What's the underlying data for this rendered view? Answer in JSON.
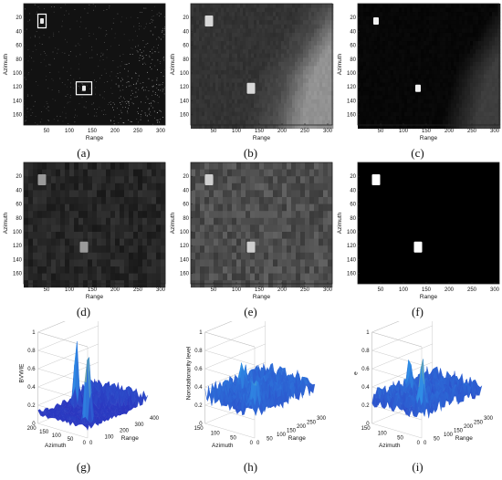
{
  "panels": [
    {
      "id": "a",
      "caption": "(a)",
      "kind": "sar",
      "xlabel": "Range",
      "ylabel": "Azimuth",
      "xticks": [
        "50",
        "100",
        "150",
        "200",
        "250",
        "300"
      ],
      "yticks": [
        "20",
        "40",
        "60",
        "80",
        "100",
        "120",
        "140",
        "160"
      ]
    },
    {
      "id": "b",
      "caption": "(b)",
      "kind": "blur",
      "xlabel": "Range",
      "ylabel": "Azimuth",
      "xticks": [
        "50",
        "100",
        "150",
        "200",
        "250",
        "300"
      ],
      "yticks": [
        "20",
        "40",
        "60",
        "80",
        "100",
        "120",
        "140",
        "160"
      ]
    },
    {
      "id": "c",
      "caption": "(c)",
      "kind": "dark",
      "xlabel": "Range",
      "ylabel": "Azimuth",
      "xticks": [
        "50",
        "100",
        "150",
        "200",
        "250",
        "300"
      ],
      "yticks": [
        "20",
        "40",
        "60",
        "80",
        "100",
        "120",
        "140",
        "160"
      ]
    },
    {
      "id": "d",
      "caption": "(d)",
      "kind": "patch-dark",
      "xlabel": "Range",
      "ylabel": "Azimuth",
      "xticks": [
        "50",
        "100",
        "150",
        "200",
        "250",
        "300"
      ],
      "yticks": [
        "20",
        "40",
        "60",
        "80",
        "100",
        "120",
        "140",
        "160"
      ]
    },
    {
      "id": "e",
      "caption": "(e)",
      "kind": "patch-light",
      "xlabel": "Range",
      "ylabel": "Azimuth",
      "xticks": [
        "50",
        "100",
        "150",
        "200",
        "250",
        "300"
      ],
      "yticks": [
        "20",
        "40",
        "60",
        "80",
        "100",
        "120",
        "140",
        "160"
      ]
    },
    {
      "id": "f",
      "caption": "(f)",
      "kind": "binary",
      "xlabel": "Range",
      "ylabel": "Azimuth",
      "xticks": [
        "50",
        "100",
        "150",
        "200",
        "250",
        "300"
      ],
      "yticks": [
        "20",
        "40",
        "60",
        "80",
        "100",
        "120",
        "140",
        "160"
      ]
    }
  ],
  "surfaces": [
    {
      "id": "g",
      "caption": "(g)",
      "zlabel": "BVWIE",
      "xlabel": "Range",
      "ylabel": "Azimuth",
      "zticks": [
        "0",
        "0.2",
        "0.4",
        "0.6",
        "0.8",
        "1"
      ],
      "xticks": [
        "0",
        "100",
        "200",
        "300",
        "400"
      ],
      "yticks": [
        "200",
        "150",
        "100",
        "50",
        "0"
      ]
    },
    {
      "id": "h",
      "caption": "(h)",
      "zlabel": "Nonstationarity level",
      "xlabel": "Range",
      "ylabel": "Azimuth",
      "zticks": [
        "0",
        "0.2",
        "0.4",
        "0.6",
        "0.8",
        "1"
      ],
      "xticks": [
        "0",
        "50",
        "100",
        "150",
        "200",
        "250",
        "300"
      ],
      "yticks": [
        "150",
        "100",
        "50",
        "0"
      ]
    },
    {
      "id": "i",
      "caption": "(i)",
      "zlabel": "e",
      "xlabel": "Range",
      "ylabel": "Azimuth",
      "zticks": [
        "0",
        "0.2",
        "0.4",
        "0.6",
        "0.8",
        "1"
      ],
      "xticks": [
        "0",
        "50",
        "100",
        "150",
        "200",
        "250",
        "300"
      ],
      "yticks": [
        "150",
        "100",
        "50",
        "0"
      ]
    }
  ],
  "colors": {
    "surface_low": "#2a1fb5",
    "surface_mid": "#2f8fe6",
    "surface_high": "#f6d72a"
  }
}
